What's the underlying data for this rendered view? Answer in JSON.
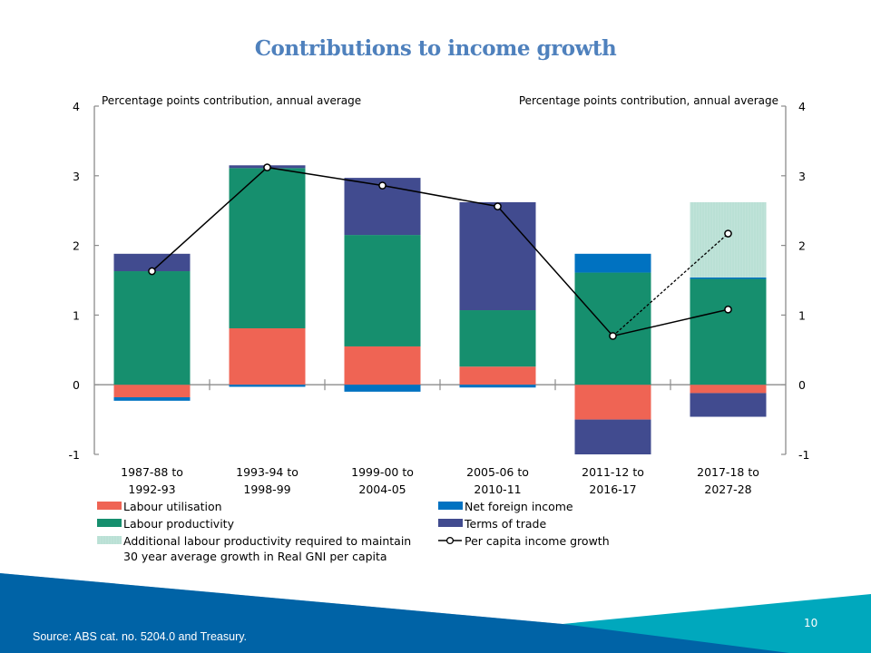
{
  "slide": {
    "title": "Contributions to income growth",
    "source": "Source: ABS cat. no. 5204.0 and Treasury.",
    "page_number": "10"
  },
  "colors": {
    "title": "#4f81bd",
    "labour_utilisation": "#ef6454",
    "labour_productivity": "#168f6e",
    "additional_labour_productivity": "#c0e3d9",
    "net_foreign_income": "#0072c1",
    "terms_of_trade": "#414b8f",
    "line": "#000000",
    "axis": "#8c8c8c",
    "footer_dark_blue": "#005c97",
    "footer_blue": "#0069b3",
    "footer_teal": "#00a8bd"
  },
  "chart_data": {
    "type": "bar",
    "stacked": true,
    "title": "Contributions to income growth",
    "ylabel_left": "Percentage points contribution, annual average",
    "ylabel_right": "Percentage points contribution, annual average",
    "ylim": [
      -1,
      4
    ],
    "yticks": [
      "4",
      "3",
      "2",
      "1",
      "0",
      "-1"
    ],
    "ytick_values": [
      4,
      3,
      2,
      1,
      0,
      -1
    ],
    "grid": false,
    "legend_position": "bottom",
    "categories": [
      [
        "1987-88 to",
        "1992-93"
      ],
      [
        "1993-94 to",
        "1998-99"
      ],
      [
        "1999-00 to",
        "2004-05"
      ],
      [
        "2005-06 to",
        "2010-11"
      ],
      [
        "2011-12 to",
        "2016-17"
      ],
      [
        "2017-18 to",
        "2027-28"
      ]
    ],
    "series": [
      {
        "key": "labour_utilisation",
        "name": "Labour utilisation",
        "kind": "bar",
        "values": [
          -0.18,
          0.81,
          0.55,
          0.26,
          -0.5,
          -0.12
        ]
      },
      {
        "key": "labour_productivity",
        "name": "Labour productivity",
        "kind": "bar",
        "values": [
          1.63,
          2.3,
          1.6,
          0.81,
          1.61,
          1.52
        ]
      },
      {
        "key": "additional_labour_productivity",
        "name": "Additional labour productivity required to maintain 30 year average growth in Real GNI per capita",
        "legend_lines": [
          "Additional labour productivity required to maintain",
          "30 year average growth in Real GNI per capita"
        ],
        "kind": "bar",
        "values": [
          0,
          0,
          0,
          0,
          0,
          1.08
        ]
      },
      {
        "key": "net_foreign_income",
        "name": "Net foreign income",
        "kind": "bar",
        "values": [
          -0.05,
          -0.03,
          -0.1,
          -0.04,
          0.27,
          0.02
        ]
      },
      {
        "key": "terms_of_trade",
        "name": "Terms of trade",
        "kind": "bar",
        "values": [
          0.25,
          0.04,
          0.82,
          1.55,
          -0.5,
          -0.34
        ]
      },
      {
        "key": "per_capita_income_growth",
        "name": "Per capita income growth",
        "kind": "line",
        "values": [
          1.63,
          3.12,
          2.86,
          2.56,
          0.7,
          1.08
        ]
      }
    ],
    "projection_line": {
      "name": "Per capita income growth (with additional labour productivity)",
      "style": "dashed",
      "from_category_index": 4,
      "values": [
        0.7,
        2.17
      ]
    }
  }
}
